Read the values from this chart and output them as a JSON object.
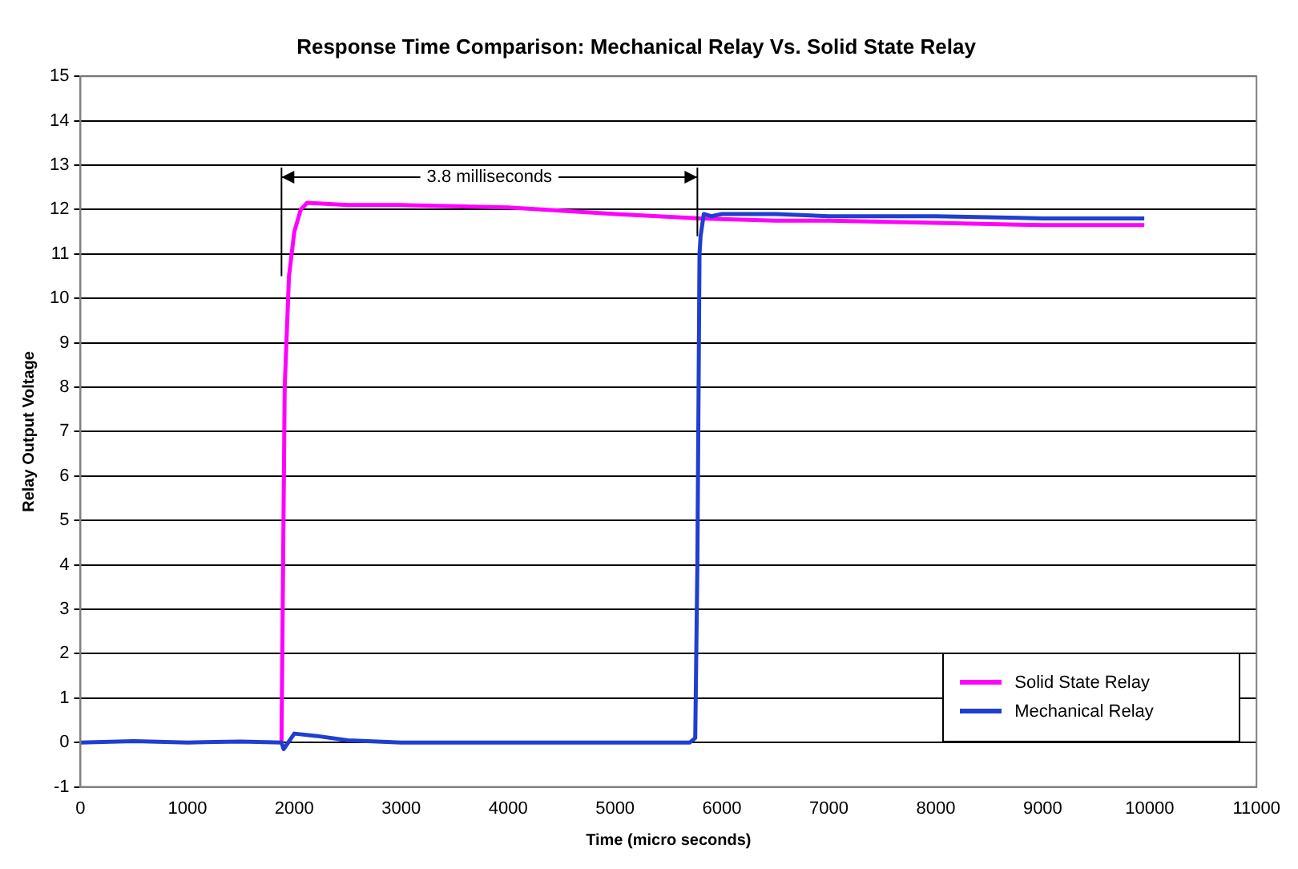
{
  "chart_data": {
    "type": "line",
    "title": "Response Time Comparison: Mechanical Relay Vs. Solid State Relay",
    "xlabel": "Time (micro seconds)",
    "ylabel": "Relay Output Voltage",
    "xlim": [
      0,
      11000
    ],
    "xticks": [
      0,
      1000,
      2000,
      3000,
      4000,
      5000,
      6000,
      7000,
      8000,
      9000,
      10000,
      11000
    ],
    "ylim": [
      -1,
      15
    ],
    "yticks": [
      -1,
      0,
      1,
      2,
      3,
      4,
      5,
      6,
      7,
      8,
      9,
      10,
      11,
      12,
      13,
      14,
      15
    ],
    "grid": "y",
    "legend": "bottom right",
    "marker": "none",
    "annotations": [
      "3.8 milliseconds"
    ],
    "series": [
      {
        "name": "Solid State Relay",
        "color": "#ff00ff",
        "x": [
          1880,
          1910,
          1950,
          2000,
          2060,
          2120,
          2500,
          3000,
          4000,
          5000,
          5800,
          6500,
          7000,
          8000,
          9000,
          9950
        ],
        "values": [
          0,
          8,
          10.5,
          11.5,
          12,
          12.15,
          12.1,
          12.1,
          12.05,
          11.9,
          11.8,
          11.75,
          11.75,
          11.7,
          11.65,
          11.65
        ]
      },
      {
        "name": "Mechanical Relay",
        "color": "#1f3fd0",
        "x": [
          0,
          500,
          1000,
          1500,
          1880,
          1900,
          2000,
          2200,
          2500,
          3000,
          4000,
          5000,
          5700,
          5750,
          5770,
          5790,
          5800,
          5830,
          5900,
          6000,
          6500,
          7000,
          8000,
          9000,
          9950
        ],
        "values": [
          0,
          0.03,
          0,
          0.02,
          0,
          -0.15,
          0.2,
          0.15,
          0.05,
          0,
          0,
          0,
          0,
          0.1,
          4,
          11,
          11.4,
          11.9,
          11.85,
          11.9,
          11.9,
          11.85,
          11.85,
          11.8,
          11.8
        ]
      }
    ]
  }
}
